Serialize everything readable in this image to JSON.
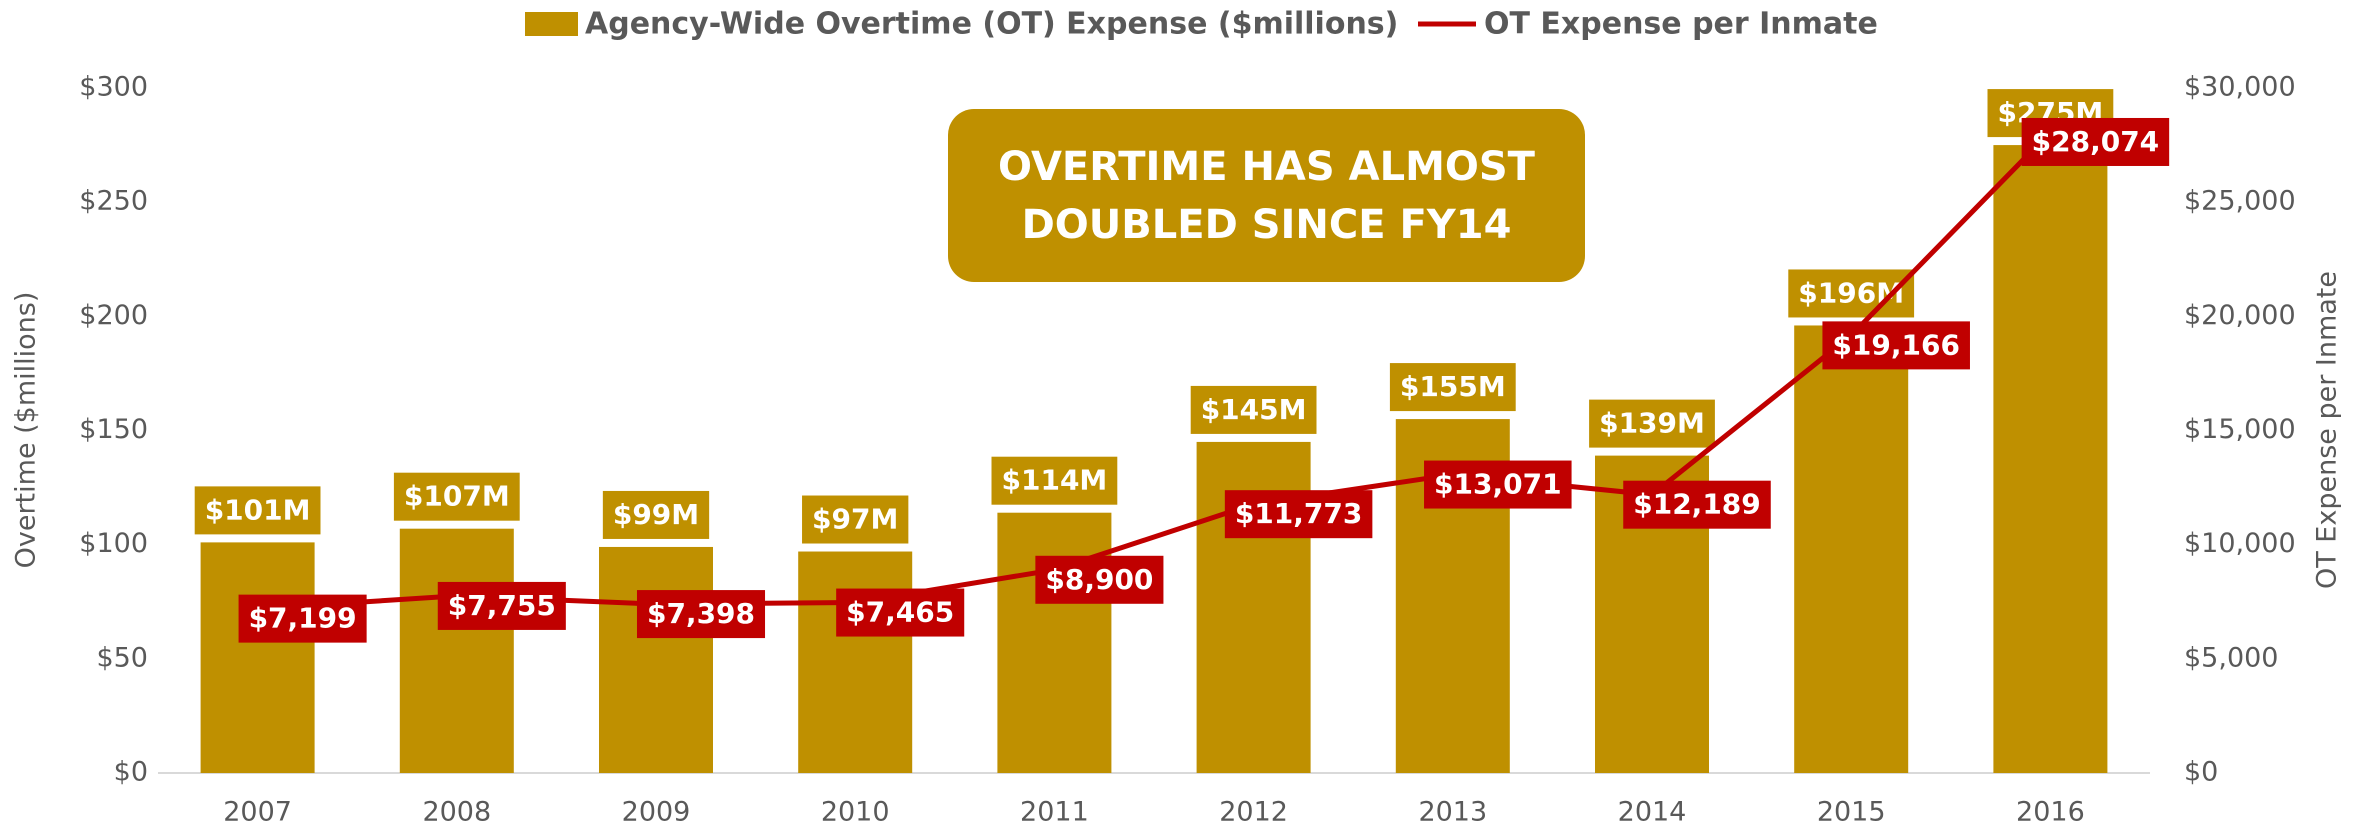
{
  "chart_data": {
    "type": "bar",
    "annotation": "OVERTIME HAS ALMOST DOUBLED SINCE FY14",
    "ylabel": "Overtime ($millions)",
    "y2label": "OT Expense per Inmate",
    "categories": [
      "2007",
      "2008",
      "2009",
      "2010",
      "2011",
      "2012",
      "2013",
      "2014",
      "2015",
      "2016"
    ],
    "series": [
      {
        "name": "Agency-Wide Overtime (OT) Expense ($millions)",
        "type": "bar",
        "color": "#bf9000",
        "values": [
          101,
          107,
          99,
          97,
          114,
          145,
          155,
          139,
          196,
          275
        ],
        "value_labels": [
          "$101M",
          "$107M",
          "$99M",
          "$97M",
          "$114M",
          "$145M",
          "$155M",
          "$139M",
          "$196M",
          "$275M"
        ]
      },
      {
        "name": "OT Expense per Inmate",
        "type": "line",
        "axis": "y2",
        "color": "#c00000",
        "values": [
          7199,
          7755,
          7398,
          7465,
          8900,
          11773,
          13071,
          12189,
          19166,
          28074
        ],
        "value_labels": [
          "$7,199",
          "$7,755",
          "$7,398",
          "$7,465",
          "$8,900",
          "$11,773",
          "$13,071",
          "$12,189",
          "$19,166",
          "$28,074"
        ]
      }
    ],
    "ylim": [
      0,
      300
    ],
    "yticks": [
      {
        "value": 0,
        "label": "$0"
      },
      {
        "value": 50,
        "label": "$50"
      },
      {
        "value": 100,
        "label": "$100"
      },
      {
        "value": 150,
        "label": "$150"
      },
      {
        "value": 200,
        "label": "$200"
      },
      {
        "value": 250,
        "label": "$250"
      },
      {
        "value": 300,
        "label": "$300"
      }
    ],
    "y2lim": [
      0,
      30000
    ],
    "y2ticks": [
      {
        "value": 0,
        "label": "$0"
      },
      {
        "value": 5000,
        "label": "$5,000"
      },
      {
        "value": 10000,
        "label": "$10,000"
      },
      {
        "value": 15000,
        "label": "$15,000"
      },
      {
        "value": 20000,
        "label": "$20,000"
      },
      {
        "value": 25000,
        "label": "$25,000"
      },
      {
        "value": 30000,
        "label": "$30,000"
      }
    ],
    "grid": false,
    "legend": "top"
  }
}
